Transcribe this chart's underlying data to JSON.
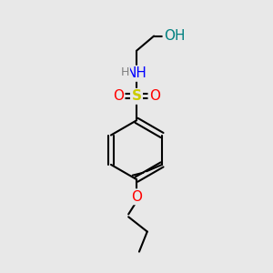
{
  "background_color": "#e8e8e8",
  "bond_color": "#000000",
  "atom_colors": {
    "S": "#cccc00",
    "N": "#0000ff",
    "O": "#ff0000",
    "O_hydroxyl": "#008080",
    "H": "#808080",
    "C": "#000000"
  },
  "figsize": [
    3.0,
    3.0
  ],
  "dpi": 100
}
